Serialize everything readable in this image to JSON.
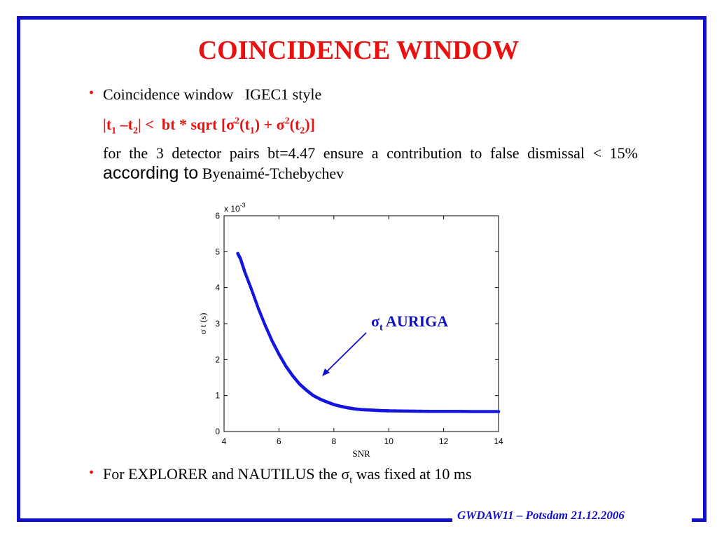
{
  "slide": {
    "title": "COINCIDENCE WINDOW",
    "bullet_symbol": "•",
    "bullet1": "Coincidence window   IGEC1 style",
    "formula": {
      "part1": "|t",
      "sub1": "1",
      "part2": " –t",
      "sub2": "2",
      "part3": "| <  bt * sqrt [σ",
      "sup1": "2",
      "part4": "(t",
      "sub3": "1",
      "part5": ") + σ",
      "sup2": "2",
      "part6": "(t",
      "sub4": "2",
      "part7": ")]"
    },
    "paragraph": {
      "text1": "for the 3 detector pairs bt=4.47 ensure a contribution to false dismissal ",
      "lt": "<",
      "text2": " 15% ",
      "big_text": "according to",
      "text3": " Byenaimé-Tchebychev"
    },
    "annotation": {
      "sigma": "σ",
      "sub": "t",
      "label": " AURIGA"
    },
    "bullet2": {
      "prefix": "For EXPLORER and NAUTILUS the σ",
      "sub": "t",
      "suffix": " was fixed at 10 ms"
    },
    "footer": "GWDAW11 – Potsdam 21.12.2006"
  },
  "colors": {
    "frame": "#1010c8",
    "title": "#e81010",
    "series": "#1515e0",
    "annotation": "#1010c8"
  },
  "chart_data": {
    "type": "scatter",
    "xlabel": "SNR",
    "ylabel": "σ t (s)",
    "exponent_label": "x 10",
    "exponent_power": "-3",
    "xlim": [
      4,
      14
    ],
    "ylim": [
      0,
      6
    ],
    "xticks": [
      "4",
      "6",
      "8",
      "10",
      "12",
      "14"
    ],
    "yticks": [
      "0",
      "1",
      "2",
      "3",
      "4",
      "5",
      "6"
    ],
    "grid": false,
    "series": [
      {
        "marker": "dot",
        "x": [
          4.5,
          4.6,
          4.75,
          5.0,
          5.25,
          5.5,
          5.75,
          6.0,
          6.25,
          6.5,
          6.75,
          7.0,
          7.25,
          7.5,
          7.75,
          8.0,
          8.25,
          8.5,
          8.75,
          9.0,
          9.25,
          9.5,
          9.75,
          10.0,
          10.5,
          11.0,
          11.5,
          12.0,
          12.5,
          13.0,
          13.5,
          14.0
        ],
        "y": [
          4.95,
          4.8,
          4.45,
          3.95,
          3.42,
          2.95,
          2.52,
          2.15,
          1.82,
          1.55,
          1.32,
          1.15,
          1.0,
          0.9,
          0.82,
          0.75,
          0.7,
          0.66,
          0.63,
          0.61,
          0.6,
          0.59,
          0.58,
          0.575,
          0.57,
          0.565,
          0.56,
          0.56,
          0.56,
          0.555,
          0.555,
          0.555
        ]
      }
    ]
  }
}
